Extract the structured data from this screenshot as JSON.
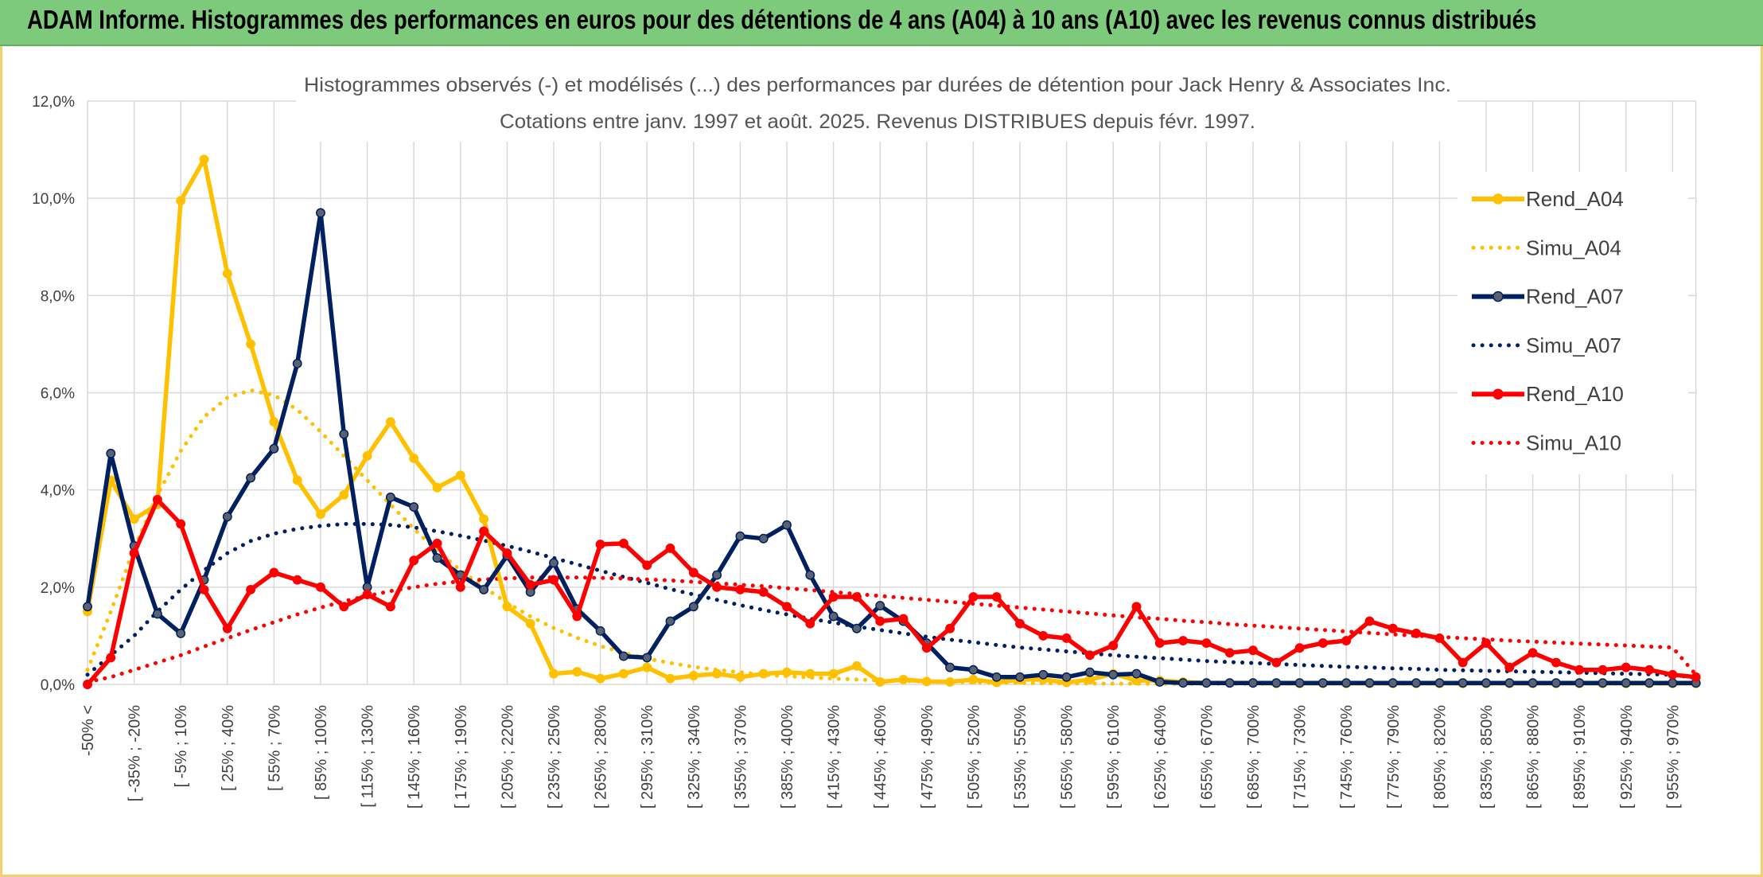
{
  "header": {
    "title": "ADAM Informe. Histogrammes des performances en euros pour des détentions de 4 ans (A04) à 10 ans (A10) avec les revenus connus distribués"
  },
  "colors": {
    "banner": "#7dca7d",
    "frame": "#f2d06b",
    "A04": "#FFC000",
    "A07": "#002060",
    "A10": "#FF0000",
    "grid": "#d9d9d9"
  },
  "chart_data": {
    "type": "line",
    "title": "Histogrammes observés (-) et modélisés (...) des performances par durées de détention pour Jack Henry & Associates Inc.",
    "subtitle": "Cotations entre janv. 1997 et août. 2025. Revenus DISTRIBUES depuis févr. 1997.",
    "xlabel": "",
    "ylabel": "",
    "ylim": [
      0,
      12
    ],
    "y_ticks": [
      "0,0%",
      "2,0%",
      "4,0%",
      "6,0%",
      "8,0%",
      "10,0%",
      "12,0%"
    ],
    "grid": true,
    "legend_position": "right",
    "x_tick_labels": [
      "-50% <",
      "[ -35% ; -20%",
      "[ -5% ; 10%",
      "[ 25% ; 40%",
      "[ 55% ; 70%",
      "[ 85% ; 100%",
      "[ 115% ; 130%",
      "[ 145% ; 160%",
      "[ 175% ; 190%",
      "[ 205% ; 220%",
      "[ 235% ; 250%",
      "[ 265% ; 280%",
      "[ 295% ; 310%",
      "[ 325% ; 340%",
      "[ 355% ; 370%",
      "[ 385% ; 400%",
      "[ 415% ; 430%",
      "[ 445% ; 460%",
      "[ 475% ; 490%",
      "[ 505% ; 520%",
      "[ 535% ; 550%",
      "[ 565% ; 580%",
      "[ 595% ; 610%",
      "[ 625% ; 640%",
      "[ 655% ; 670%",
      "[ 685% ; 700%",
      "[ 715% ; 730%",
      "[ 745% ; 760%",
      "[ 775% ; 790%",
      "[ 805% ; 820%",
      "[ 835% ; 850%",
      "[ 865% ; 880%",
      "[ 895% ; 910%",
      "[ 925% ; 940%",
      "[ 955% ; 970%"
    ],
    "series": [
      {
        "name": "Rend_A04",
        "style": "solid",
        "color": "#FFC000",
        "values": [
          1.5,
          4.2,
          3.4,
          3.7,
          9.95,
          10.8,
          8.45,
          7.0,
          5.4,
          4.2,
          3.5,
          3.9,
          4.7,
          5.4,
          4.65,
          4.05,
          4.3,
          3.4,
          1.6,
          1.25,
          0.22,
          0.26,
          0.12,
          0.22,
          0.35,
          0.12,
          0.18,
          0.22,
          0.15,
          0.22,
          0.25,
          0.22,
          0.22,
          0.38,
          0.05,
          0.1,
          0.06,
          0.05,
          0.1,
          0.04,
          0.1,
          0.1,
          0.04,
          0.1,
          0.22,
          0.08,
          0.08,
          0.05,
          0.03,
          0.03,
          0.03,
          0.02,
          0.02,
          0.02,
          0.02,
          0.02,
          0.02,
          0.02,
          0.02,
          0.02,
          0.02,
          0.02,
          0.02,
          0.02,
          0.02,
          0.02,
          0.02,
          0.02,
          0.02,
          0.02
        ]
      },
      {
        "name": "Simu_A04",
        "style": "dotted",
        "color": "#FFC000",
        "values": [
          0.3,
          1.5,
          2.8,
          3.9,
          4.8,
          5.5,
          5.9,
          6.05,
          5.95,
          5.65,
          5.2,
          4.7,
          4.2,
          3.7,
          3.2,
          2.75,
          2.35,
          2.0,
          1.68,
          1.4,
          1.16,
          0.96,
          0.79,
          0.65,
          0.53,
          0.44,
          0.36,
          0.3,
          0.25,
          0.2,
          0.17,
          0.14,
          0.12,
          0.1,
          0.08,
          0.07,
          0.06,
          0.05,
          0.04,
          0.035,
          0.03,
          0.025,
          0.02,
          0.02,
          0.015,
          0.015,
          0.01,
          0.01,
          0.01,
          0.01,
          0.01,
          0.01,
          0.01,
          0.01,
          0.01,
          0.01,
          0.01,
          0.01,
          0.01,
          0.01,
          0.01,
          0.01,
          0.01,
          0.01,
          0.01,
          0.01,
          0.01,
          0.01,
          0.01,
          0.01
        ]
      },
      {
        "name": "Rend_A07",
        "style": "solid",
        "color": "#002060",
        "values": [
          1.6,
          4.75,
          2.85,
          1.45,
          1.05,
          2.15,
          3.45,
          4.25,
          4.85,
          6.6,
          9.7,
          5.15,
          2.0,
          3.85,
          3.65,
          2.6,
          2.25,
          1.95,
          2.65,
          1.9,
          2.5,
          1.55,
          1.1,
          0.58,
          0.55,
          1.3,
          1.6,
          2.25,
          3.05,
          3.0,
          3.28,
          2.25,
          1.4,
          1.15,
          1.62,
          1.3,
          0.85,
          0.35,
          0.3,
          0.15,
          0.15,
          0.2,
          0.15,
          0.25,
          0.2,
          0.22,
          0.05,
          0.03,
          0.03,
          0.03,
          0.03,
          0.03,
          0.03,
          0.03,
          0.03,
          0.03,
          0.03,
          0.03,
          0.03,
          0.03,
          0.03,
          0.03,
          0.03,
          0.03,
          0.03,
          0.03,
          0.03,
          0.03,
          0.03,
          0.03
        ]
      },
      {
        "name": "Simu_A07",
        "style": "dotted",
        "color": "#002060",
        "values": [
          0.2,
          0.6,
          1.0,
          1.5,
          1.95,
          2.35,
          2.7,
          2.95,
          3.1,
          3.2,
          3.26,
          3.3,
          3.3,
          3.28,
          3.23,
          3.15,
          3.06,
          2.96,
          2.85,
          2.73,
          2.6,
          2.47,
          2.34,
          2.21,
          2.09,
          1.96,
          1.85,
          1.74,
          1.63,
          1.53,
          1.44,
          1.35,
          1.27,
          1.19,
          1.12,
          1.05,
          0.98,
          0.92,
          0.87,
          0.81,
          0.76,
          0.72,
          0.68,
          0.64,
          0.6,
          0.57,
          0.54,
          0.51,
          0.48,
          0.46,
          0.44,
          0.42,
          0.4,
          0.38,
          0.36,
          0.35,
          0.33,
          0.32,
          0.3,
          0.29,
          0.28,
          0.27,
          0.26,
          0.25,
          0.24,
          0.23,
          0.22,
          0.21,
          0.2,
          0.13
        ]
      },
      {
        "name": "Rend_A10",
        "style": "solid",
        "color": "#FF0000",
        "values": [
          0.0,
          0.55,
          2.7,
          3.8,
          3.3,
          1.95,
          1.15,
          1.95,
          2.3,
          2.15,
          2.0,
          1.6,
          1.85,
          1.6,
          2.55,
          2.9,
          2.0,
          3.15,
          2.7,
          2.05,
          2.15,
          1.4,
          2.88,
          2.9,
          2.45,
          2.8,
          2.3,
          2.0,
          1.95,
          1.9,
          1.6,
          1.25,
          1.8,
          1.8,
          1.3,
          1.35,
          0.75,
          1.15,
          1.8,
          1.8,
          1.25,
          1.0,
          0.95,
          0.6,
          0.8,
          1.6,
          0.85,
          0.9,
          0.85,
          0.65,
          0.7,
          0.45,
          0.75,
          0.85,
          0.9,
          1.3,
          1.15,
          1.05,
          0.95,
          0.45,
          0.85,
          0.35,
          0.65,
          0.45,
          0.3,
          0.3,
          0.35,
          0.3,
          0.2,
          0.15
        ]
      },
      {
        "name": "Simu_A10",
        "style": "dotted",
        "color": "#FF0000",
        "values": [
          0.05,
          0.15,
          0.3,
          0.45,
          0.6,
          0.78,
          0.95,
          1.12,
          1.28,
          1.44,
          1.58,
          1.71,
          1.82,
          1.92,
          2.0,
          2.07,
          2.12,
          2.16,
          2.18,
          2.2,
          2.2,
          2.2,
          2.19,
          2.18,
          2.16,
          2.14,
          2.11,
          2.08,
          2.05,
          2.02,
          1.98,
          1.94,
          1.9,
          1.86,
          1.82,
          1.78,
          1.74,
          1.7,
          1.66,
          1.62,
          1.58,
          1.54,
          1.5,
          1.46,
          1.42,
          1.38,
          1.35,
          1.31,
          1.28,
          1.24,
          1.21,
          1.18,
          1.15,
          1.12,
          1.09,
          1.06,
          1.03,
          1.0,
          0.98,
          0.95,
          0.93,
          0.9,
          0.88,
          0.86,
          0.84,
          0.82,
          0.8,
          0.78,
          0.76,
          0.2
        ]
      }
    ]
  }
}
